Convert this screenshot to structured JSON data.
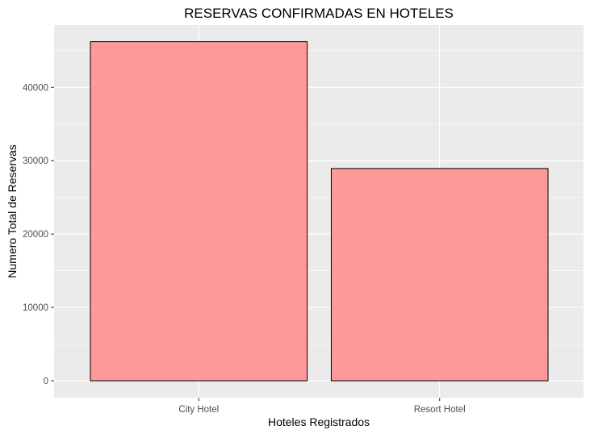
{
  "chart_data": {
    "type": "bar",
    "title": "RESERVAS CONFIRMADAS EN HOTELES",
    "xlabel": "Hoteles Registrados",
    "ylabel": "Numero Total de Reservas",
    "categories": [
      "City Hotel",
      "Resort Hotel"
    ],
    "values": [
      46228,
      28938
    ],
    "ylim": [
      0,
      48500
    ],
    "yticks": [
      0,
      10000,
      20000,
      30000,
      40000
    ],
    "ytick_labels": [
      "0",
      "10000",
      "20000",
      "30000",
      "40000"
    ],
    "grid": true,
    "legend": "none",
    "colors": {
      "bar_fill": "#FF9999",
      "bar_stroke": "#000000",
      "panel_bg": "#EBEBEB",
      "grid_major": "#FFFFFF",
      "tick_text": "#4D4D4D"
    }
  }
}
